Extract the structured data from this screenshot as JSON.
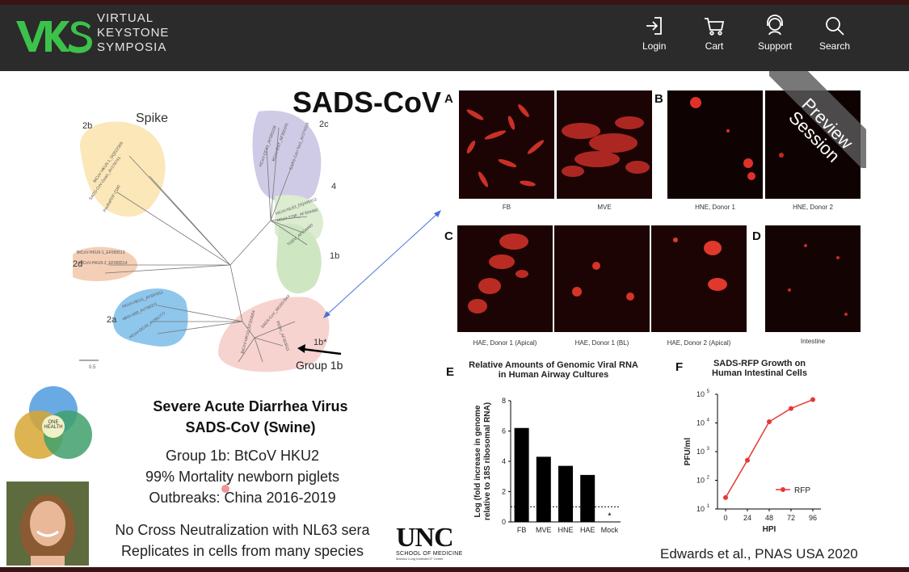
{
  "header": {
    "logo_lines": [
      "VIRTUAL",
      "KEYSTONE",
      "SYMPOSIA"
    ],
    "nav": [
      {
        "label": "Login",
        "icon": "login-icon"
      },
      {
        "label": "Cart",
        "icon": "cart-icon"
      },
      {
        "label": "Support",
        "icon": "support-icon"
      },
      {
        "label": "Search",
        "icon": "search-icon"
      }
    ]
  },
  "slide": {
    "title": "SADS-CoV",
    "tree": {
      "label": "Spike",
      "clades": [
        "2b",
        "2c",
        "4",
        "2d",
        "1b",
        "2a",
        "1b*"
      ],
      "group_label": "Group 1b",
      "leaves_2b": [
        "BtCoV HKU5-1_DQ022305",
        "SADS-CoV-Guan_AY278741",
        "PoofraPDF-2180"
      ],
      "leaves_2c": [
        "HCoV-OC43_AY585228",
        "BCoV-ENT_AF391541",
        "SARS-CoV-Tor2_AY274119"
      ],
      "leaves_4": [
        "HCoV-NL63_DQ445912",
        "HCoV-229E_AF304460",
        "TGEV_AF304460"
      ],
      "leaves_2d": [
        "BtCoV-HKU9-1_EF065513",
        "BtCoV-HKU9-2_EF065514"
      ],
      "leaves_2a": [
        "HCoV-HKU1_AY597011",
        "MHV-A59_AY700211",
        "HCoV-OC43_AY391777"
      ],
      "leaves_1b": [
        "SADS-CoV_MG557844",
        "BtCoV-HKU2_EF203064",
        "PEDV_AF353511"
      ],
      "scale_label": "0.5"
    },
    "panels": {
      "A": {
        "letter": "A",
        "captions": [
          "FB",
          "MVE"
        ]
      },
      "B": {
        "letter": "B",
        "captions": [
          "HNE, Donor 1",
          "HNE, Donor 2"
        ]
      },
      "C": {
        "letter": "C",
        "captions": [
          "HAE, Donor 1 (Apical)",
          "HAE, Donor 1 (BL)",
          "HAE, Donor 2 (Apical)"
        ]
      },
      "D": {
        "letter": "D",
        "captions": [
          "Intestine"
        ]
      },
      "E": {
        "letter": "E"
      },
      "F": {
        "letter": "F"
      }
    },
    "preview_badge": {
      "line1": "Preview",
      "line2": "Session"
    },
    "virus_name": {
      "line1": "Severe Acute Diarrhea Virus",
      "line2": "SADS-CoV (Swine)"
    },
    "facts": [
      "Group 1b: BtCoV HKU2",
      "99% Mortality newborn piglets",
      "Outbreaks: China 2016-2019",
      "No Cross Neutralization with NL63 sera",
      "Replicates in cells from many species"
    ],
    "one_health": {
      "center": "ONE\nHEALTH"
    },
    "unc": {
      "big": "UNC",
      "sub": "SCHOOL OF MEDICINE",
      "tiny": "Marsico Lung Institute/CF Center"
    },
    "citation": "Edwards et al., PNAS USA 2020"
  },
  "chart_data": [
    {
      "type": "bar",
      "title": "Relative Amounts of Genomic Viral RNA in Human Airway Cultures",
      "title_lines": [
        "Relative Amounts of Genomic Viral RNA",
        "in Human Airway Cultures"
      ],
      "categories": [
        "FB",
        "MVE",
        "HNE",
        "HAE",
        "Mock"
      ],
      "values": [
        6.2,
        4.3,
        3.7,
        3.1,
        0
      ],
      "mock_marker": "*",
      "ylabel_lines": [
        "Log (fold increase in genome",
        "relative to 18S ribosomal RNA)"
      ],
      "ylim": [
        0,
        8
      ],
      "yticks": [
        0,
        2,
        4,
        6,
        8
      ],
      "threshold": 1,
      "bar_color": "#000000"
    },
    {
      "type": "line",
      "title": "SADS-RFP Growth on Human Intestinal Cells",
      "title_lines": [
        "SADS-RFP Growth on",
        "Human Intestinal Cells"
      ],
      "x": [
        0,
        24,
        48,
        72,
        96
      ],
      "series": [
        {
          "name": "RFP",
          "values": [
            25,
            500,
            11000,
            32000,
            65000
          ],
          "color": "#e53935"
        }
      ],
      "xlabel": "HPI",
      "ylabel": "PFU/ml",
      "yscale": "log",
      "ylim": [
        10,
        100000
      ],
      "yticks": [
        "10",
        "10",
        "10",
        "10",
        "10"
      ],
      "ytick_exponents": [
        "1",
        "2",
        "3",
        "4",
        "5"
      ],
      "xticks": [
        "0",
        "24",
        "48",
        "72",
        "96"
      ],
      "legend": "bottom-right"
    }
  ]
}
